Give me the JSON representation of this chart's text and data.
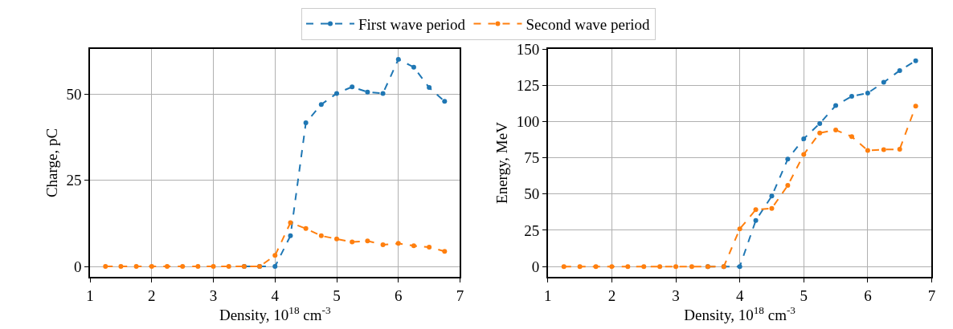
{
  "chart_data": [
    {
      "type": "line",
      "xlabel": "Density, 10$^{18}$ cm$^{-3}$",
      "ylabel": "Charge, pC",
      "x": [
        1.25,
        1.5,
        1.75,
        2,
        2.25,
        2.5,
        2.75,
        3,
        3.25,
        3.5,
        3.75,
        4,
        4.25,
        4.5,
        4.75,
        5,
        5.25,
        5.5,
        5.75,
        6,
        6.25,
        6.5,
        6.75
      ],
      "series": [
        {
          "name": "First wave period",
          "color": "#1f77b4",
          "values": [
            null,
            null,
            null,
            null,
            null,
            null,
            null,
            null,
            null,
            0,
            0,
            0,
            8.9,
            41.7,
            47.0,
            50.2,
            52.1,
            50.6,
            50.2,
            60.1,
            57.8,
            51.9,
            47.9
          ]
        },
        {
          "name": "Second wave period",
          "color": "#ff7f0e",
          "values": [
            0,
            0,
            0,
            0,
            0,
            0,
            0,
            0,
            0,
            0,
            0,
            3.2,
            12.7,
            11.0,
            8.9,
            8.0,
            7.1,
            7.4,
            6.3,
            6.7,
            6.0,
            5.6,
            4.4
          ]
        }
      ],
      "xlim": [
        1,
        7
      ],
      "xticks": [
        1,
        2,
        3,
        4,
        5,
        6,
        7
      ],
      "ylim": [
        -3.0,
        63.1
      ],
      "yticks": [
        0,
        25,
        50
      ],
      "grid": true,
      "legend": "top",
      "marker": "circle",
      "line_style": "dashed"
    },
    {
      "type": "line",
      "xlabel": "Density, 10$^{18}$ cm$^{-3}$",
      "ylabel": "Energy, MeV",
      "x": [
        1.25,
        1.5,
        1.75,
        2,
        2.25,
        2.5,
        2.75,
        3,
        3.25,
        3.5,
        3.75,
        4,
        4.25,
        4.5,
        4.75,
        5,
        5.25,
        5.5,
        5.75,
        6,
        6.25,
        6.5,
        6.75
      ],
      "series": [
        {
          "name": "First wave period",
          "color": "#1f77b4",
          "values": [
            null,
            null,
            null,
            null,
            null,
            null,
            null,
            null,
            null,
            0,
            0,
            0,
            31.8,
            48.6,
            74.1,
            88.1,
            98.6,
            111,
            117.3,
            119.6,
            127,
            135.1,
            141.9
          ]
        },
        {
          "name": "Second wave period",
          "color": "#ff7f0e",
          "values": [
            0,
            0,
            0,
            0,
            0,
            0,
            0,
            0,
            0,
            0,
            0,
            25.9,
            39.2,
            40.1,
            55.9,
            77.3,
            92.1,
            94.1,
            89.6,
            80,
            80.6,
            80.9,
            110.6
          ]
        }
      ],
      "xlim": [
        1,
        7
      ],
      "xticks": [
        1,
        2,
        3,
        4,
        5,
        6,
        7
      ],
      "ylim": [
        -7.1,
        150
      ],
      "yticks": [
        0,
        25,
        50,
        75,
        100,
        125,
        150
      ],
      "grid": true,
      "legend": "top",
      "marker": "circle",
      "line_style": "dashed"
    }
  ]
}
